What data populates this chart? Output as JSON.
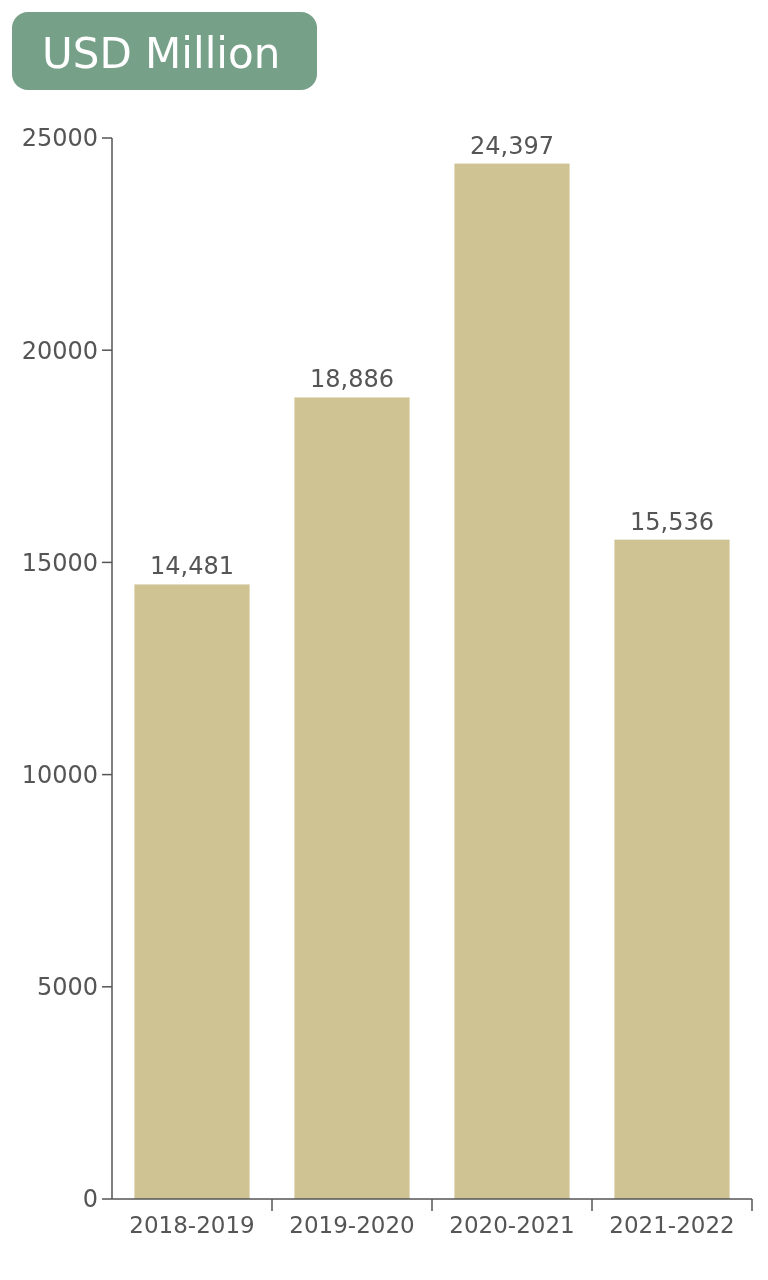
{
  "chart_data": {
    "type": "bar",
    "title": "USD Million",
    "categories": [
      "2018-2019",
      "2019-2020",
      "2020-2021",
      "2021-2022"
    ],
    "values": [
      14481,
      18886,
      24397,
      15536
    ],
    "color": "#cfc393",
    "ylim": [
      0,
      25000
    ],
    "yticks": [
      0,
      5000,
      10000,
      15000,
      20000,
      25000
    ],
    "value_labels": [
      "14,481",
      "18,886",
      "24,397",
      "15,536"
    ],
    "grid": false
  }
}
